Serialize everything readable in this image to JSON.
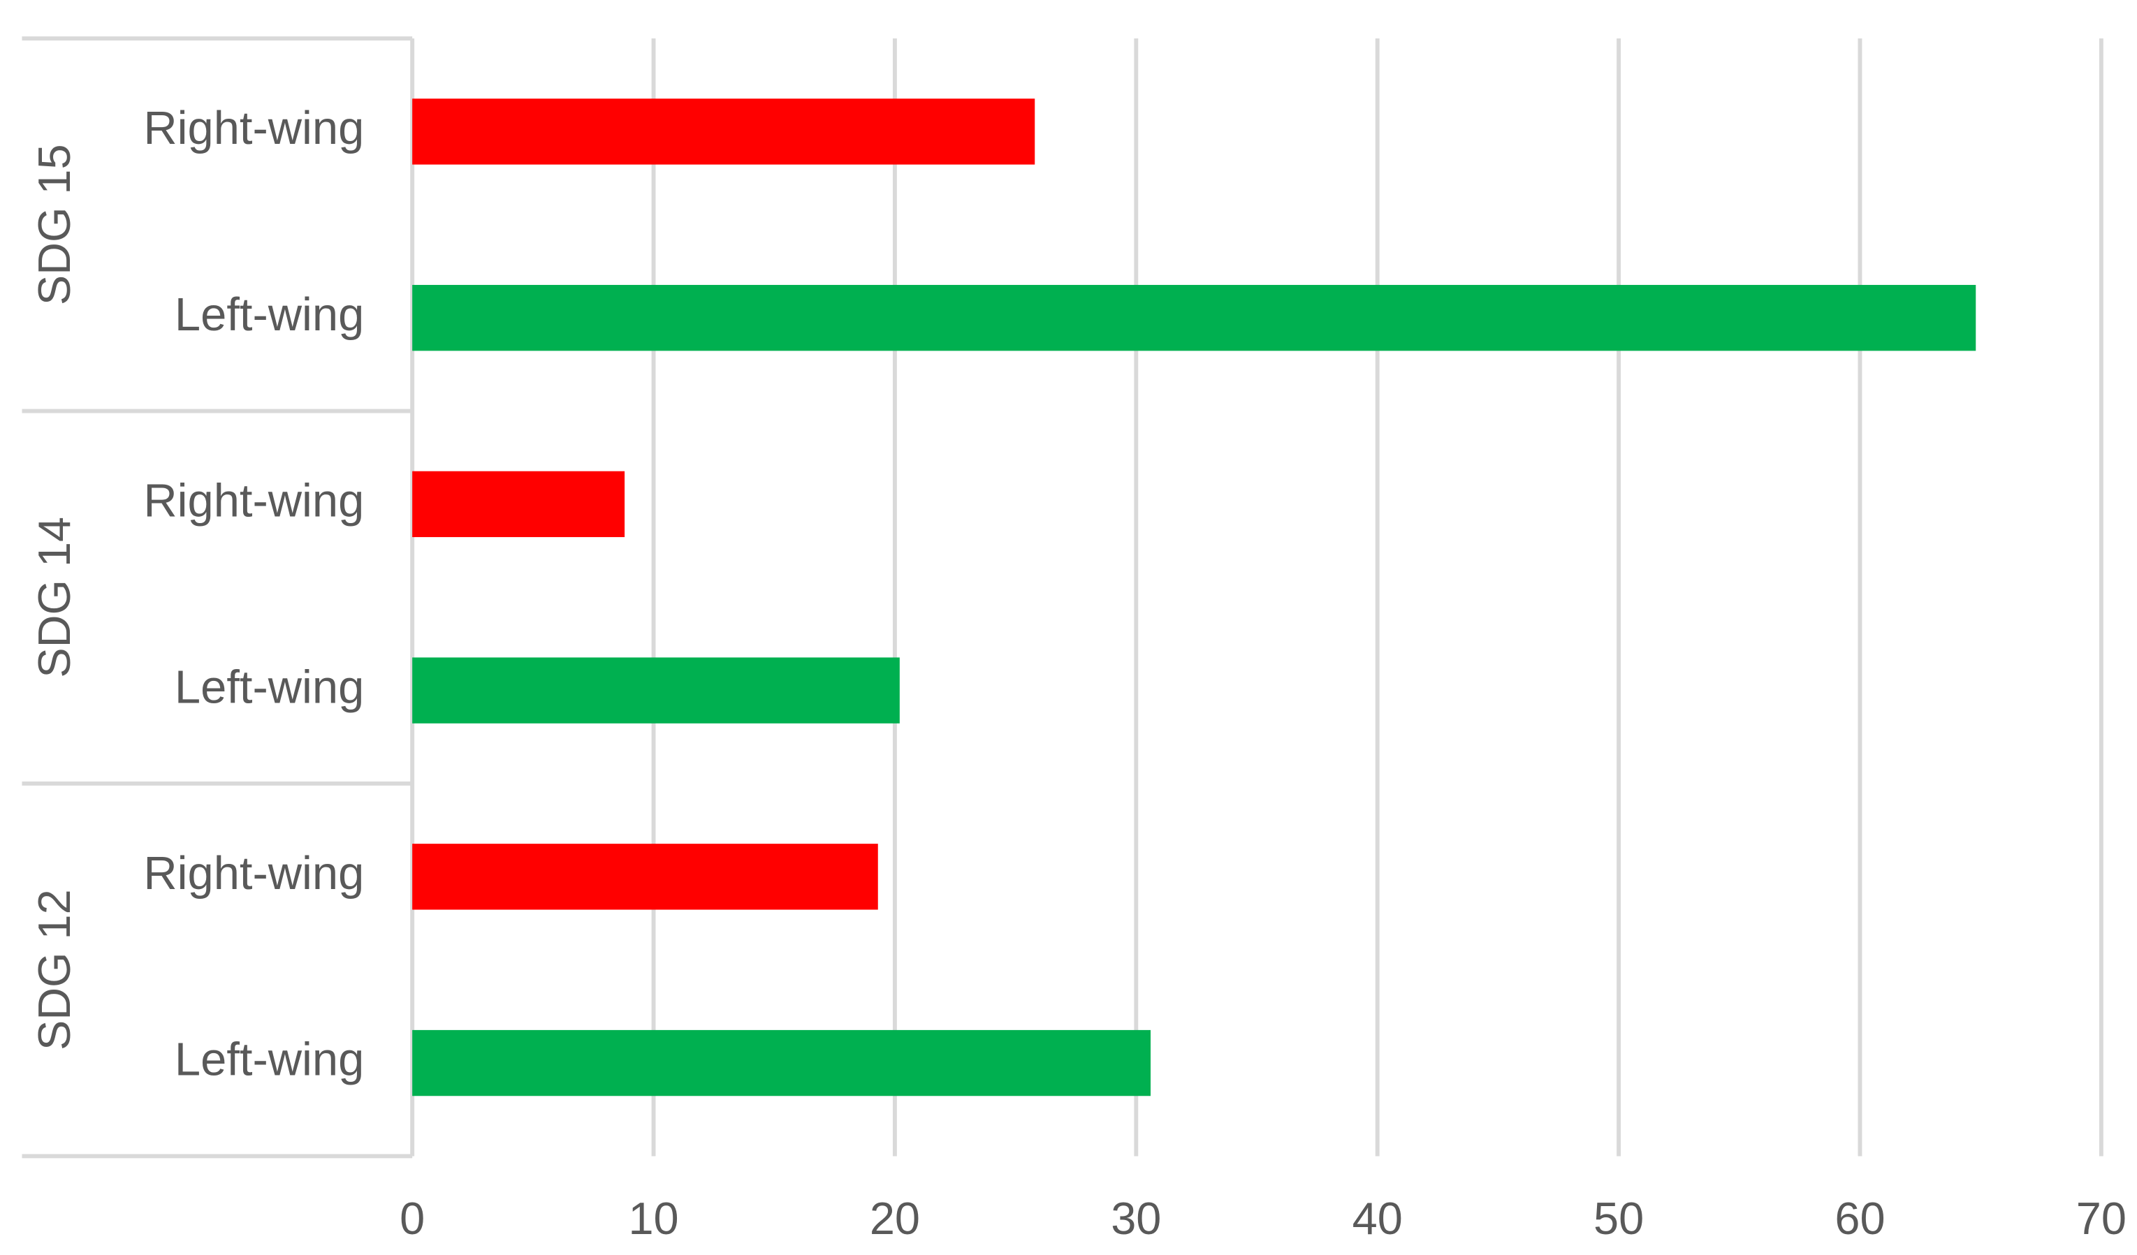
{
  "chart_data": {
    "type": "bar",
    "orientation": "horizontal",
    "groups": [
      {
        "name": "SDG 15",
        "categories": [
          "Right-wing",
          "Left-wing"
        ],
        "values": [
          25.8,
          64.8
        ],
        "colors": [
          "#ff0000",
          "#00b050"
        ]
      },
      {
        "name": "SDG 14",
        "categories": [
          "Right-wing",
          "Left-wing"
        ],
        "values": [
          8.8,
          20.2
        ],
        "colors": [
          "#ff0000",
          "#00b050"
        ]
      },
      {
        "name": "SDG 12",
        "categories": [
          "Right-wing",
          "Left-wing"
        ],
        "values": [
          19.3,
          30.6
        ],
        "colors": [
          "#ff0000",
          "#00b050"
        ]
      }
    ],
    "xlim": [
      0,
      70
    ],
    "xticks": [
      0,
      10,
      20,
      30,
      40,
      50,
      60,
      70
    ],
    "grid": true
  }
}
